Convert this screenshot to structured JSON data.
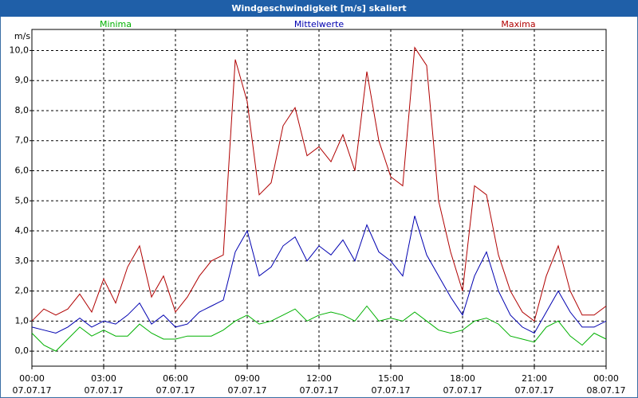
{
  "chart_data": {
    "type": "line",
    "title": "Windgeschwindigkeit [m/s] skaliert",
    "y_label": "m/s",
    "x": [
      0,
      0.5,
      1,
      1.5,
      2,
      2.5,
      3,
      3.5,
      4,
      4.5,
      5,
      5.5,
      6,
      6.5,
      7,
      7.5,
      8,
      8.5,
      9,
      9.5,
      10,
      10.5,
      11,
      11.5,
      12,
      12.5,
      13,
      13.5,
      14,
      14.5,
      15,
      15.5,
      16,
      16.5,
      17,
      17.5,
      18,
      18.5,
      19,
      19.5,
      20,
      20.5,
      21,
      21.5,
      22,
      22.5,
      23,
      23.5,
      24
    ],
    "series": [
      {
        "name": "Minima",
        "color": "#00b000",
        "values": [
          0.6,
          0.2,
          0.0,
          0.4,
          0.8,
          0.5,
          0.7,
          0.5,
          0.5,
          0.9,
          0.6,
          0.4,
          0.4,
          0.5,
          0.5,
          0.5,
          0.7,
          1.0,
          1.2,
          0.9,
          1.0,
          1.2,
          1.4,
          1.0,
          1.2,
          1.3,
          1.2,
          1.0,
          1.5,
          1.0,
          1.1,
          1.0,
          1.3,
          1.0,
          0.7,
          0.6,
          0.7,
          1.0,
          1.1,
          0.9,
          0.5,
          0.4,
          0.3,
          0.8,
          1.0,
          0.5,
          0.2,
          0.6,
          0.4
        ]
      },
      {
        "name": "Mittelwerte",
        "color": "#0000b0",
        "values": [
          0.8,
          0.7,
          0.6,
          0.8,
          1.1,
          0.8,
          1.0,
          0.9,
          1.2,
          1.6,
          0.9,
          1.2,
          0.8,
          0.9,
          1.3,
          1.5,
          1.7,
          3.3,
          4.0,
          2.5,
          2.8,
          3.5,
          3.8,
          3.0,
          3.5,
          3.2,
          3.7,
          3.0,
          4.2,
          3.3,
          3.0,
          2.5,
          4.5,
          3.2,
          2.5,
          1.8,
          1.2,
          2.5,
          3.3,
          2.0,
          1.2,
          0.8,
          0.6,
          1.3,
          2.0,
          1.3,
          0.8,
          0.8,
          1.0
        ]
      },
      {
        "name": "Maxima",
        "color": "#b00000",
        "values": [
          1.0,
          1.4,
          1.2,
          1.4,
          1.9,
          1.3,
          2.4,
          1.6,
          2.8,
          3.5,
          1.8,
          2.5,
          1.3,
          1.8,
          2.5,
          3.0,
          3.2,
          9.7,
          8.3,
          5.2,
          5.6,
          7.5,
          8.1,
          6.5,
          6.8,
          6.3,
          7.2,
          6.0,
          9.3,
          7.0,
          5.8,
          5.5,
          10.1,
          9.5,
          5.0,
          3.3,
          2.0,
          5.5,
          5.2,
          3.2,
          2.0,
          1.3,
          1.0,
          2.5,
          3.5,
          2.0,
          1.2,
          1.2,
          1.5
        ]
      }
    ],
    "xlim": [
      0,
      24
    ],
    "xticks": [
      {
        "value": 0,
        "label": "00:00"
      },
      {
        "value": 3,
        "label": "03:00"
      },
      {
        "value": 6,
        "label": "06:00"
      },
      {
        "value": 9,
        "label": "09:00"
      },
      {
        "value": 12,
        "label": "12:00"
      },
      {
        "value": 15,
        "label": "15:00"
      },
      {
        "value": 18,
        "label": "18:00"
      },
      {
        "value": 21,
        "label": "21:00"
      },
      {
        "value": 24,
        "label": "00:00"
      }
    ],
    "xtick_dates": [
      "07.07.17",
      "07.07.17",
      "07.07.17",
      "07.07.17",
      "07.07.17",
      "07.07.17",
      "07.07.17",
      "07.07.17",
      "08.07.17"
    ],
    "ylim": [
      -0.5,
      10.7
    ],
    "yticks": [
      {
        "value": 0,
        "label": "0,0"
      },
      {
        "value": 1,
        "label": "1,0"
      },
      {
        "value": 2,
        "label": "2,0"
      },
      {
        "value": 3,
        "label": "3,0"
      },
      {
        "value": 4,
        "label": "4,0"
      },
      {
        "value": 5,
        "label": "5,0"
      },
      {
        "value": 6,
        "label": "6,0"
      },
      {
        "value": 7,
        "label": "7,0"
      },
      {
        "value": 8,
        "label": "8,0"
      },
      {
        "value": 9,
        "label": "9,0"
      },
      {
        "value": 10,
        "label": "10,0"
      }
    ],
    "grid": true
  }
}
